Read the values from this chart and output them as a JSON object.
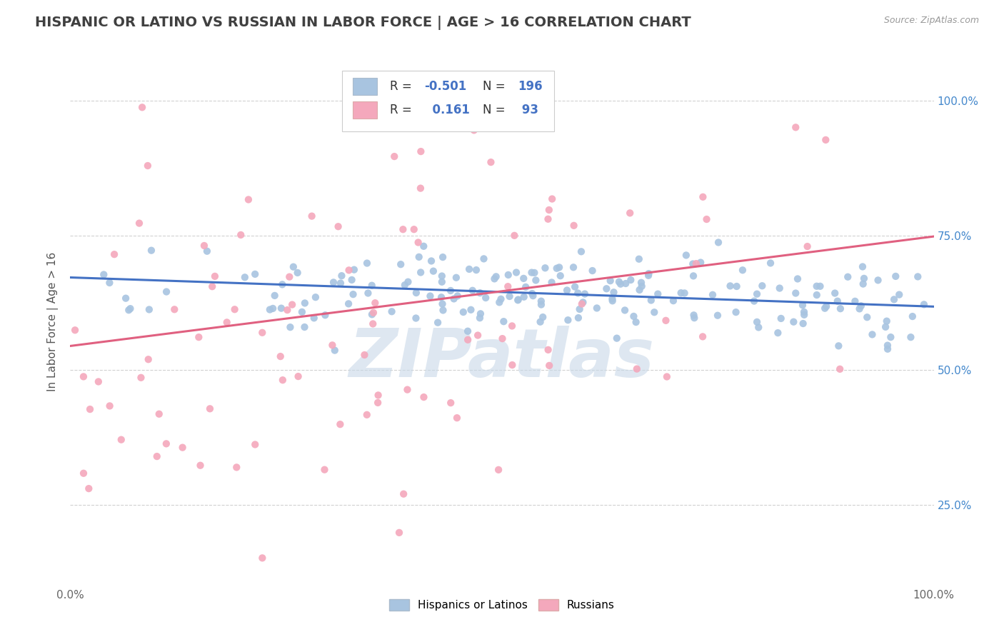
{
  "title": "HISPANIC OR LATINO VS RUSSIAN IN LABOR FORCE | AGE > 16 CORRELATION CHART",
  "source_text": "Source: ZipAtlas.com",
  "ylabel": "In Labor Force | Age > 16",
  "xlim": [
    0.0,
    1.0
  ],
  "ylim": [
    0.1,
    1.08
  ],
  "xticks": [
    0.0,
    0.25,
    0.5,
    0.75,
    1.0
  ],
  "xtick_labels": [
    "0.0%",
    "",
    "",
    "",
    "100.0%"
  ],
  "ytick_labels_right": [
    "25.0%",
    "50.0%",
    "75.0%",
    "100.0%"
  ],
  "ytick_vals_right": [
    0.25,
    0.5,
    0.75,
    1.0
  ],
  "blue_R": -0.501,
  "blue_N": 196,
  "pink_R": 0.161,
  "pink_N": 93,
  "blue_color": "#a8c4e0",
  "blue_line_color": "#4472c4",
  "pink_color": "#f4a8bc",
  "pink_line_color": "#e06080",
  "legend_label_blue": "Hispanics or Latinos",
  "legend_label_pink": "Russians",
  "watermark": "ZIPatlas",
  "watermark_color": "#c8d8e8",
  "background_color": "#ffffff",
  "grid_color": "#cccccc",
  "title_color": "#404040",
  "title_fontsize": 14,
  "blue_trend_y_start": 0.672,
  "blue_trend_y_end": 0.618,
  "pink_trend_y_start": 0.545,
  "pink_trend_y_end": 0.748
}
